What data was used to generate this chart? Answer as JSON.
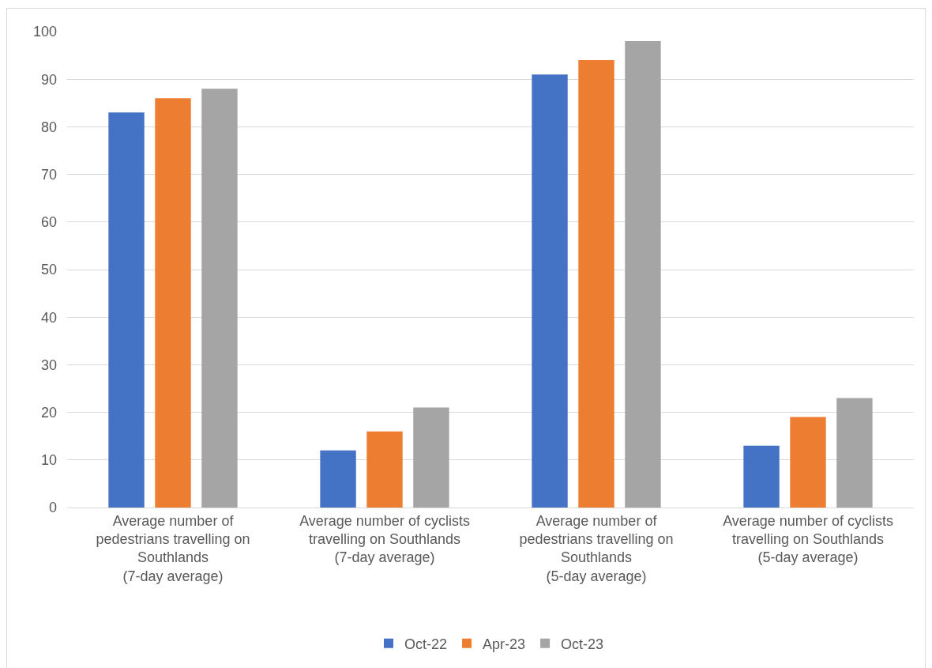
{
  "chart_data": {
    "type": "bar",
    "categories": [
      "Average number of\npedestrians travelling on\nSouthlands\n(7-day average)",
      "Average number of cyclists\ntravelling on Southlands\n(7-day average)",
      "Average number of\npedestrians travelling on\nSouthlands\n(5-day average)",
      "Average number of cyclists\ntravelling on Southlands\n(5-day average)"
    ],
    "series": [
      {
        "name": "Oct-22",
        "color": "#4472c4",
        "values": [
          83,
          12,
          91,
          13
        ]
      },
      {
        "name": "Apr-23",
        "color": "#ed7d31",
        "values": [
          86,
          16,
          94,
          19
        ]
      },
      {
        "name": "Oct-23",
        "color": "#a5a5a5",
        "values": [
          88,
          21,
          98,
          23
        ]
      }
    ],
    "ylim": [
      0,
      100
    ],
    "yticks": [
      0,
      10,
      20,
      30,
      40,
      50,
      60,
      70,
      80,
      90,
      100
    ],
    "grid": "y",
    "legend": "bottom"
  }
}
